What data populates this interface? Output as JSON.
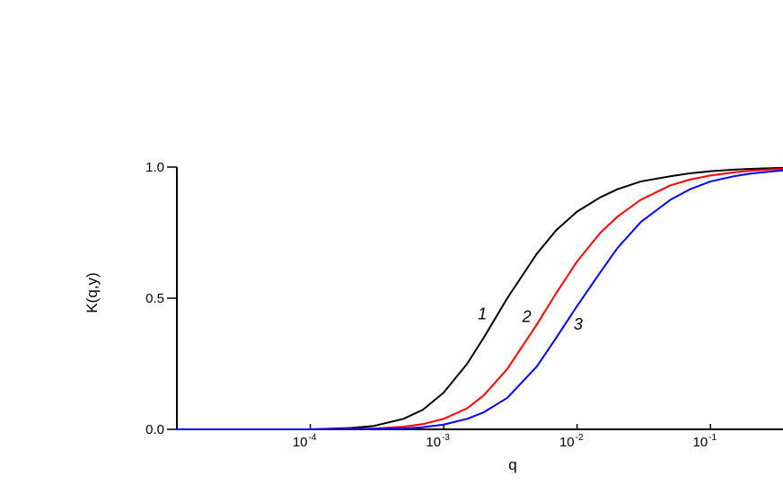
{
  "chart_data": {
    "type": "line",
    "title": "",
    "xlabel": "q",
    "ylabel": "K(q,y)",
    "x_scale": "log",
    "xlim": [
      1e-05,
      0.35
    ],
    "ylim": [
      0,
      1
    ],
    "grid": false,
    "legend": "none",
    "x_ticks": [
      {
        "value": 0.0001,
        "base": "10",
        "exp": "-4"
      },
      {
        "value": 0.001,
        "base": "10",
        "exp": "-3"
      },
      {
        "value": 0.01,
        "base": "10",
        "exp": "-2"
      },
      {
        "value": 0.1,
        "base": "10",
        "exp": "-1"
      }
    ],
    "y_ticks": [
      {
        "value": 0.0,
        "label": "0.0"
      },
      {
        "value": 0.5,
        "label": "0.5"
      },
      {
        "value": 1.0,
        "label": "1.0"
      }
    ],
    "series": [
      {
        "name": "1",
        "color": "#000000",
        "x": [
          1e-05,
          0.0001,
          0.0002,
          0.0003,
          0.0005,
          0.0007,
          0.001,
          0.0015,
          0.002,
          0.003,
          0.005,
          0.007,
          0.01,
          0.015,
          0.02,
          0.03,
          0.05,
          0.07,
          0.1,
          0.15,
          0.2,
          0.3,
          0.35
        ],
        "y": [
          0.0,
          0.0,
          0.005,
          0.013,
          0.04,
          0.075,
          0.14,
          0.25,
          0.35,
          0.5,
          0.67,
          0.76,
          0.83,
          0.885,
          0.915,
          0.945,
          0.965,
          0.976,
          0.984,
          0.99,
          0.993,
          0.996,
          0.997
        ]
      },
      {
        "name": "2",
        "color": "#ff0000",
        "x": [
          1e-05,
          0.0001,
          0.0003,
          0.0005,
          0.0007,
          0.001,
          0.0015,
          0.002,
          0.003,
          0.005,
          0.007,
          0.01,
          0.015,
          0.02,
          0.03,
          0.05,
          0.07,
          0.1,
          0.15,
          0.2,
          0.3,
          0.35
        ],
        "y": [
          0.0,
          0.0,
          0.003,
          0.01,
          0.02,
          0.04,
          0.08,
          0.13,
          0.23,
          0.4,
          0.52,
          0.64,
          0.75,
          0.81,
          0.875,
          0.93,
          0.952,
          0.968,
          0.98,
          0.986,
          0.992,
          0.993
        ]
      },
      {
        "name": "3",
        "color": "#0000ff",
        "x": [
          1e-05,
          0.0001,
          0.0005,
          0.0007,
          0.001,
          0.0015,
          0.002,
          0.003,
          0.005,
          0.007,
          0.01,
          0.015,
          0.02,
          0.03,
          0.05,
          0.07,
          0.1,
          0.15,
          0.2,
          0.3,
          0.35
        ],
        "y": [
          0.0,
          0.0,
          0.003,
          0.008,
          0.018,
          0.04,
          0.065,
          0.12,
          0.24,
          0.35,
          0.47,
          0.6,
          0.69,
          0.79,
          0.875,
          0.915,
          0.945,
          0.965,
          0.975,
          0.984,
          0.987
        ]
      }
    ],
    "annotations": [
      {
        "text": "1",
        "series": "1",
        "x": 0.00195,
        "y": 0.42
      },
      {
        "text": "2",
        "series": "2",
        "x": 0.0042,
        "y": 0.41
      },
      {
        "text": "3",
        "series": "3",
        "x": 0.0102,
        "y": 0.38
      }
    ]
  }
}
